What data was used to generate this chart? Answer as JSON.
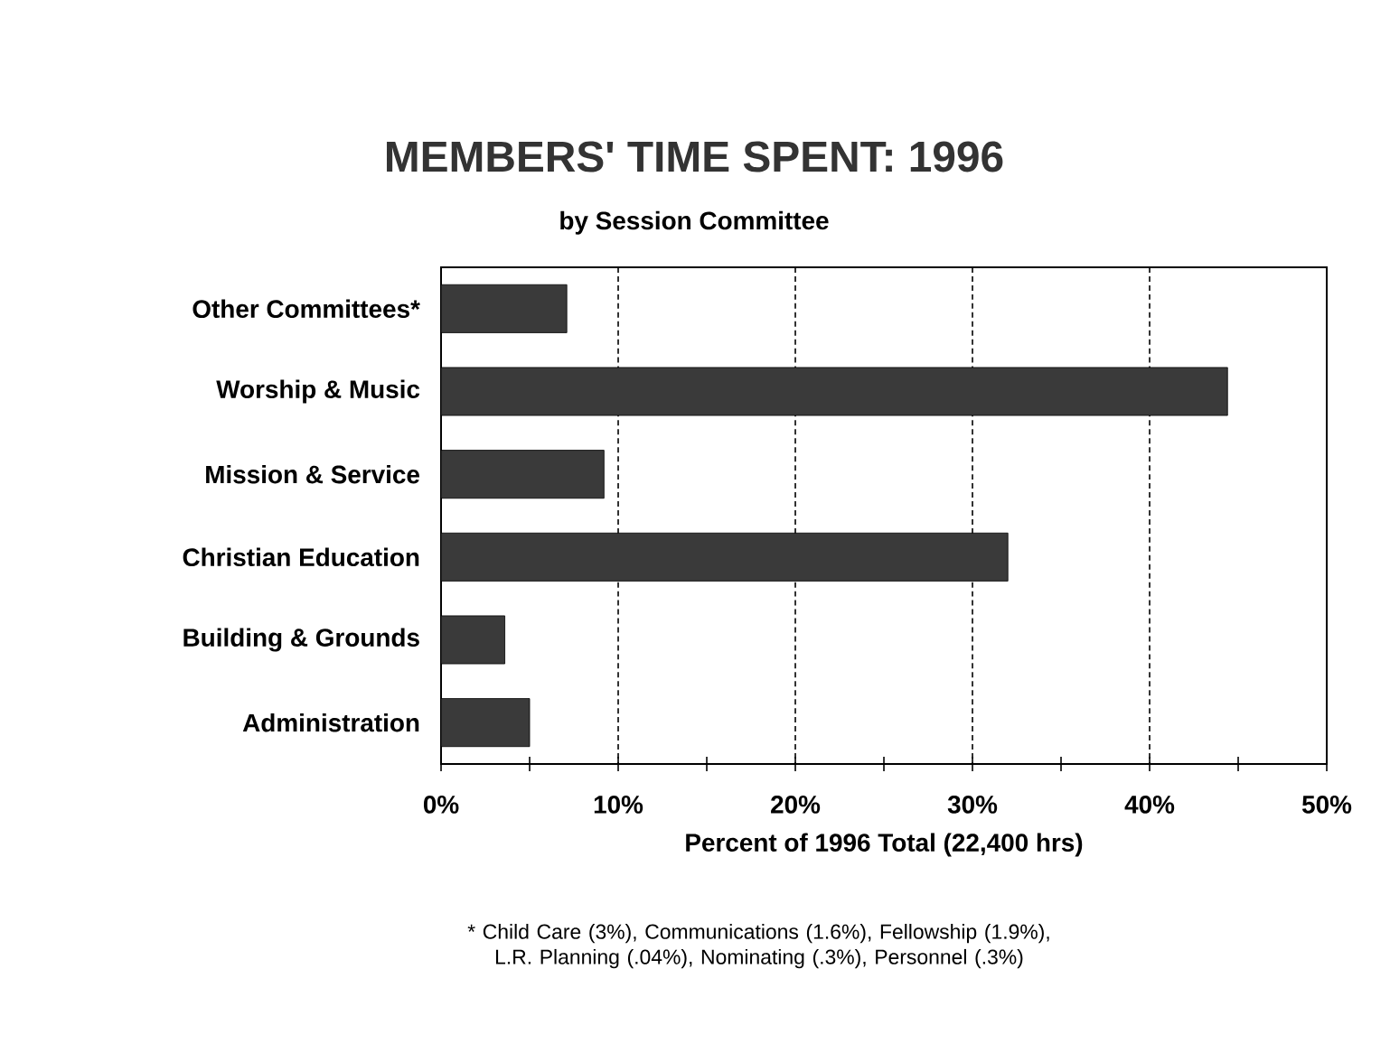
{
  "chart_data": {
    "type": "bar",
    "orientation": "horizontal",
    "title": "MEMBERS' TIME SPENT: 1996",
    "subtitle": "by Session Committee",
    "xlabel": "Percent of 1996 Total (22,400 hrs)",
    "categories": [
      "Other Committees*",
      "Worship & Music",
      "Mission & Service",
      "Christian Education",
      "Building & Grounds",
      "Administration"
    ],
    "values": [
      7.1,
      44.4,
      9.2,
      32.0,
      3.6,
      5.0
    ],
    "color": "#3a3a3a",
    "xlim": [
      0,
      50
    ],
    "xticks": [
      {
        "value": 0,
        "label": "0%"
      },
      {
        "value": 5,
        "label": null
      },
      {
        "value": 10,
        "label": "10%"
      },
      {
        "value": 15,
        "label": null
      },
      {
        "value": 20,
        "label": "20%"
      },
      {
        "value": 25,
        "label": null
      },
      {
        "value": 30,
        "label": "30%"
      },
      {
        "value": 35,
        "label": null
      },
      {
        "value": 40,
        "label": "40%"
      },
      {
        "value": 45,
        "label": null
      },
      {
        "value": 50,
        "label": "50%"
      }
    ],
    "grid": "x",
    "annotations": [
      "* Child Care (3%), Communications (1.6%), Fellowship (1.9%), L.R. Planning (.04%), Nominating (.3%), Personnel (.3%)"
    ]
  }
}
